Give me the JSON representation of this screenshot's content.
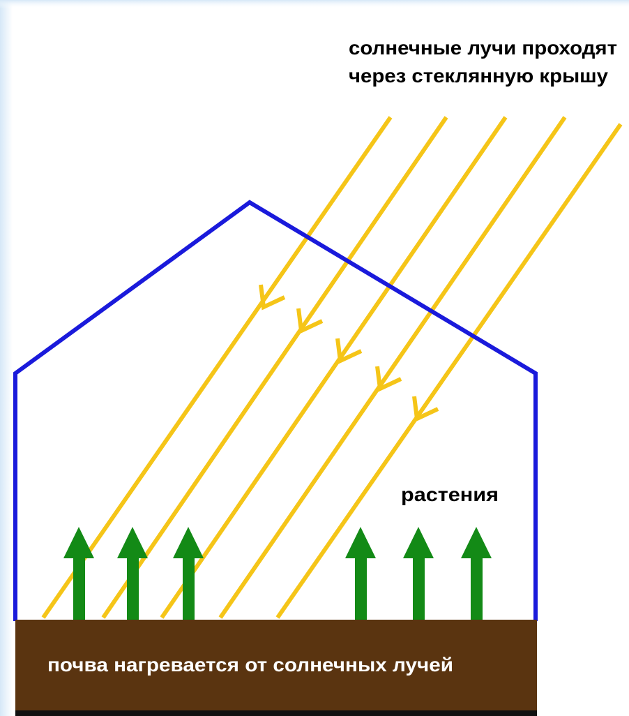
{
  "labels": {
    "sun_rays": [
      "солнечные лучи проходят",
      "через стеклянную крышу"
    ],
    "plants": "растения",
    "soil": "почва нагревается от солнечных лучей"
  }
}
